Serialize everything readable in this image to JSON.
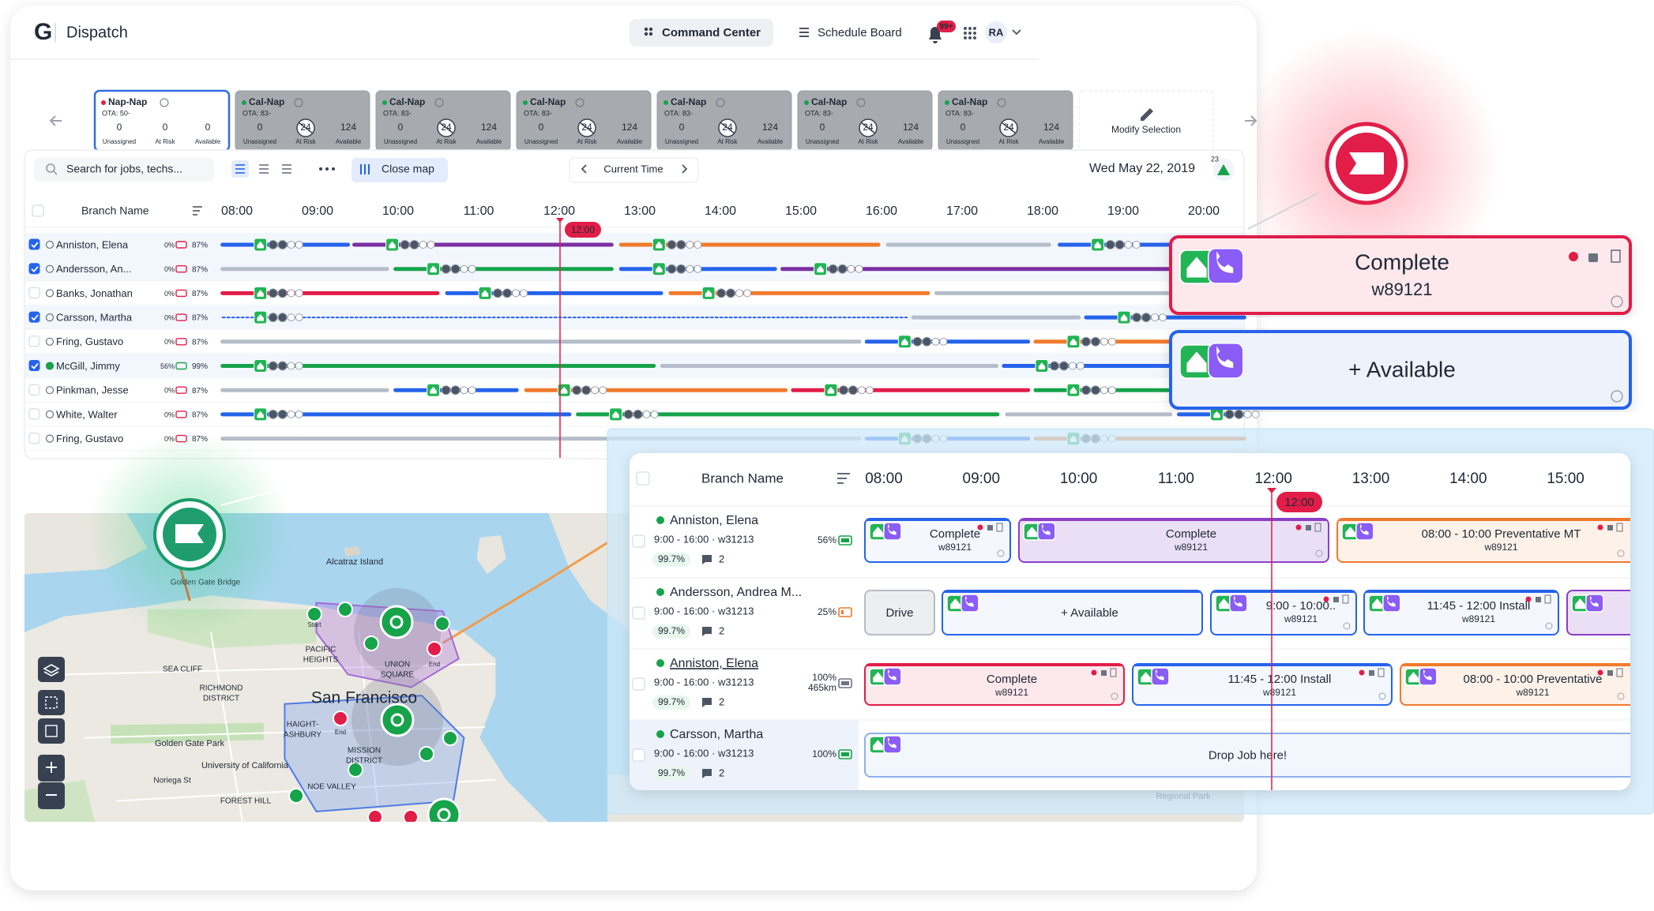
{
  "header": {
    "logo": "G",
    "app": "Dispatch",
    "tabs": [
      "Command Center",
      "Schedule Board"
    ],
    "notification_badge": "99+",
    "avatar": "RA"
  },
  "territories": {
    "cards": [
      {
        "name": "Nap-Nap",
        "ota": "OTA: 50-",
        "stats": [
          {
            "value": "0",
            "label": "Unassigned"
          },
          {
            "value": "0",
            "label": "At Risk"
          },
          {
            "value": "0",
            "label": "Available"
          }
        ]
      },
      {
        "name": "Cal-Nap",
        "ota": "OTA: 83-",
        "stats": [
          {
            "value": "0",
            "label": "Unassigned"
          },
          {
            "value": "24",
            "label": "At Risk"
          },
          {
            "value": "124",
            "label": "Available"
          }
        ]
      },
      {
        "name": "Cal-Nap",
        "ota": "OTA: 83-",
        "stats": [
          {
            "value": "0",
            "label": "Unassigned"
          },
          {
            "value": "24",
            "label": "At Risk"
          },
          {
            "value": "124",
            "label": "Available"
          }
        ]
      },
      {
        "name": "Cal-Nap",
        "ota": "OTA: 83-",
        "stats": [
          {
            "value": "0",
            "label": "Unassigned"
          },
          {
            "value": "24",
            "label": "At Risk"
          },
          {
            "value": "124",
            "label": "Available"
          }
        ]
      },
      {
        "name": "Cal-Nap",
        "ota": "OTA: 83-",
        "stats": [
          {
            "value": "0",
            "label": "Unassigned"
          },
          {
            "value": "24",
            "label": "At Risk"
          },
          {
            "value": "124",
            "label": "Available"
          }
        ]
      },
      {
        "name": "Cal-Nap",
        "ota": "OTA: 83-",
        "stats": [
          {
            "value": "0",
            "label": "Unassigned"
          },
          {
            "value": "24",
            "label": "At Risk"
          },
          {
            "value": "124",
            "label": "Available"
          }
        ]
      },
      {
        "name": "Cal-Nap",
        "ota": "OTA: 83-",
        "stats": [
          {
            "value": "0",
            "label": "Unassigned"
          },
          {
            "value": "24",
            "label": "At Risk"
          },
          {
            "value": "124",
            "label": "Available"
          }
        ]
      }
    ],
    "modify": "Modify Selection"
  },
  "toolbar": {
    "search": "Search for jobs, techs...",
    "close_map": "Close map",
    "current_time": "Current Time",
    "date": "Wed May 22, 2019",
    "alert_count": "23"
  },
  "schedule": {
    "column": "Branch Name",
    "times": [
      "08:00",
      "09:00",
      "10:00",
      "11:00",
      "12:00",
      "13:00",
      "14:00",
      "15:00",
      "16:00",
      "17:00",
      "18:00",
      "19:00",
      "20:00"
    ],
    "now": "12:00",
    "rows": [
      {
        "name": "Anniston, Elena",
        "battery": "0%",
        "score": "87%",
        "checked": true
      },
      {
        "name": "Andersson, An...",
        "battery": "0%",
        "score": "87%",
        "checked": true
      },
      {
        "name": "Banks, Jonathan",
        "battery": "0%",
        "score": "87%",
        "checked": false
      },
      {
        "name": "Carsson, Martha",
        "battery": "0%",
        "score": "87%",
        "checked": true
      },
      {
        "name": "Fring, Gustavo",
        "battery": "0%",
        "score": "87%",
        "checked": false
      },
      {
        "name": "McGill, Jimmy",
        "battery": "56%",
        "score": "99%",
        "checked": true
      },
      {
        "name": "Pinkman, Jesse",
        "battery": "0%",
        "score": "87%",
        "checked": false
      },
      {
        "name": "White, Walter",
        "battery": "0%",
        "score": "87%",
        "checked": false
      },
      {
        "name": "Fring, Gustavo",
        "battery": "0%",
        "score": "87%",
        "checked": false
      }
    ]
  },
  "map": {
    "labels": [
      "Alcatraz Island",
      "Golden Gate Bridge",
      "San Francisco",
      "PACIFIC",
      "HEIGHTS",
      "SEA CLIFF",
      "RICHMOND",
      "DISTRICT",
      "HAIGHT-",
      "ASHBURY",
      "Golden Gate Park",
      "University of California",
      "Noriega St",
      "FOREST HILL",
      "NOE VALLEY",
      "MISSION",
      "DISTRICT",
      "UNION",
      "SQUARE",
      "Regional Park",
      "Start",
      "End",
      "End"
    ]
  },
  "popups": [
    {
      "status": "Complete",
      "job": "w89121"
    },
    {
      "status": "+ Available"
    }
  ],
  "detail": {
    "column": "Branch Name",
    "times": [
      "08:00",
      "09:00",
      "10:00",
      "11:00",
      "12:00",
      "13:00",
      "14:00",
      "15:00"
    ],
    "now": "12:00",
    "rows": [
      {
        "name": "Anniston, Elena",
        "shift": "9:00 - 16:00 · w31213",
        "rate": "99.7%",
        "comments": "2",
        "battery": "56%",
        "jobs": [
          {
            "title": "Complete",
            "job": "w89121"
          },
          {
            "title": "Complete",
            "job": "w89121"
          },
          {
            "title": "08:00 - 10:00 Preventative MT",
            "job": "w89121"
          }
        ]
      },
      {
        "name": "Andersson, Andrea M...",
        "shift": "9:00 - 16:00 · w31213",
        "rate": "99.7%",
        "comments": "2",
        "battery": "25%",
        "jobs": [
          {
            "title": "Drive"
          },
          {
            "title": "+ Available"
          },
          {
            "title": "9:00 - 10:00..",
            "job": "w89121"
          },
          {
            "title": "11:45 - 12:00 Install",
            "job": "w89121"
          }
        ]
      },
      {
        "name": "Anniston, Elena",
        "shift": "9:00 - 16:00 · w31213",
        "rate": "99.7%",
        "comments": "2",
        "battery": "100%",
        "distance": "465km",
        "jobs": [
          {
            "title": "Complete",
            "job": "w89121"
          },
          {
            "title": "11:45 - 12:00 Install",
            "job": "w89121"
          },
          {
            "title": "08:00 - 10:00 Preventative",
            "job": "w89121"
          }
        ]
      },
      {
        "name": "Carsson, Martha",
        "shift": "9:00 - 16:00 · w31213",
        "rate": "99.7%",
        "comments": "2",
        "battery": "100%",
        "jobs": [
          {
            "title": "Drop Job here!"
          }
        ]
      }
    ]
  }
}
